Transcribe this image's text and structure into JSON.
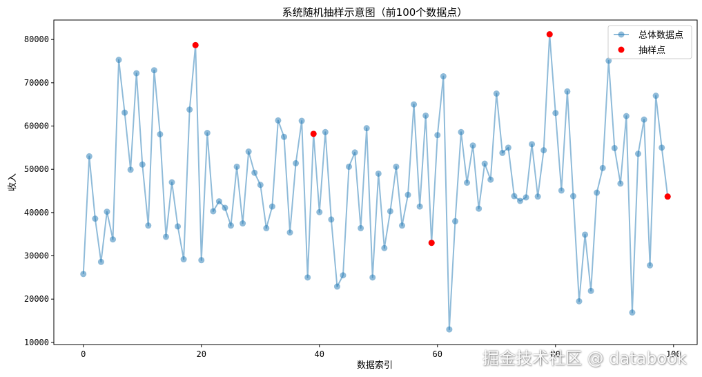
{
  "chart_data": {
    "type": "line",
    "title": "系统随机抽样示意图（前100个数据点）",
    "xlabel": "数据索引",
    "ylabel": "收入",
    "xlim": [
      -5,
      104
    ],
    "ylim": [
      9500,
      84500
    ],
    "x_ticks": [
      0,
      20,
      40,
      60,
      80,
      100
    ],
    "y_ticks": [
      10000,
      20000,
      30000,
      40000,
      50000,
      60000,
      70000,
      80000
    ],
    "grid": false,
    "legend_position": "top-right",
    "series": [
      {
        "name": "总体数据点",
        "kind": "line-with-markers",
        "color": "#1f77b4",
        "x": [
          0,
          1,
          2,
          3,
          4,
          5,
          6,
          7,
          8,
          9,
          10,
          11,
          12,
          13,
          14,
          15,
          16,
          17,
          18,
          19,
          20,
          21,
          22,
          23,
          24,
          25,
          26,
          27,
          28,
          29,
          30,
          31,
          32,
          33,
          34,
          35,
          36,
          37,
          38,
          39,
          40,
          41,
          42,
          43,
          44,
          45,
          46,
          47,
          48,
          49,
          50,
          51,
          52,
          53,
          54,
          55,
          56,
          57,
          58,
          59,
          60,
          61,
          62,
          63,
          64,
          65,
          66,
          67,
          68,
          69,
          70,
          71,
          72,
          73,
          74,
          75,
          76,
          77,
          78,
          79,
          80,
          81,
          82,
          83,
          84,
          85,
          86,
          87,
          88,
          89,
          90,
          91,
          92,
          93,
          94,
          95,
          96,
          97,
          98,
          99
        ],
        "y": [
          25800,
          53000,
          38600,
          28600,
          40200,
          33800,
          75300,
          63100,
          49900,
          72200,
          51100,
          37000,
          72900,
          58100,
          34400,
          47000,
          36800,
          29200,
          63800,
          78700,
          29000,
          58400,
          40300,
          42600,
          41100,
          37000,
          50600,
          37500,
          54100,
          49200,
          46400,
          36400,
          41400,
          61300,
          57500,
          35400,
          51400,
          61200,
          25000,
          58200,
          40100,
          58600,
          38400,
          22900,
          25500,
          50600,
          53900,
          36400,
          59500,
          25000,
          49000,
          31800,
          40300,
          50600,
          37000,
          44100,
          65000,
          41400,
          62400,
          33000,
          57900,
          71500,
          13000,
          38000,
          58600,
          46900,
          55500,
          40900,
          51300,
          47600,
          67500,
          53800,
          55000,
          43800,
          42700,
          43500,
          55800,
          43700,
          54400,
          81200,
          63000,
          45100,
          68000,
          43800,
          19500,
          34900,
          21900,
          44600,
          50300,
          75100,
          54900,
          46700,
          62300,
          16900,
          53600,
          61500,
          27800,
          67000,
          55000,
          43700
        ]
      },
      {
        "name": "抽样点",
        "kind": "scatter",
        "color": "#ff0000",
        "x": [
          19,
          39,
          59,
          79,
          99
        ],
        "y": [
          78700,
          58200,
          33000,
          81200,
          43700
        ]
      }
    ]
  },
  "watermark": "掘金技术社区 @ databook"
}
